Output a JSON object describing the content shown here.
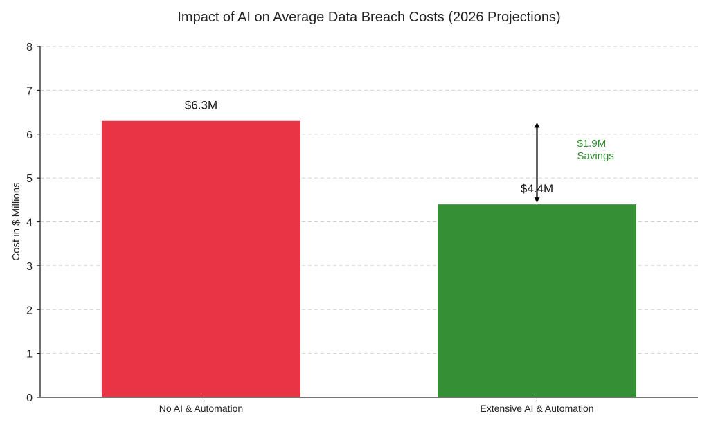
{
  "chart_data": {
    "type": "bar",
    "title": "Impact of AI on Average Data Breach Costs (2026 Projections)",
    "xlabel": "",
    "ylabel": "Cost in $ Millions",
    "ylim": [
      0,
      8
    ],
    "yticks": [
      0,
      1,
      2,
      3,
      4,
      5,
      6,
      7,
      8
    ],
    "grid": "horizontal-dashed",
    "categories": [
      "No AI & Automation",
      "Extensive AI & Automation"
    ],
    "values": [
      6.3,
      4.4
    ],
    "data_labels": [
      "$6.3M",
      "$4.4M"
    ],
    "colors": [
      "#e83445",
      "#358f35"
    ],
    "annotation": {
      "type": "double-arrow",
      "from": 6.3,
      "to": 4.4,
      "at_category": "Extensive AI & Automation",
      "text_lines": [
        "$1.9M",
        "Savings"
      ],
      "color": "#2e8b2e"
    }
  }
}
